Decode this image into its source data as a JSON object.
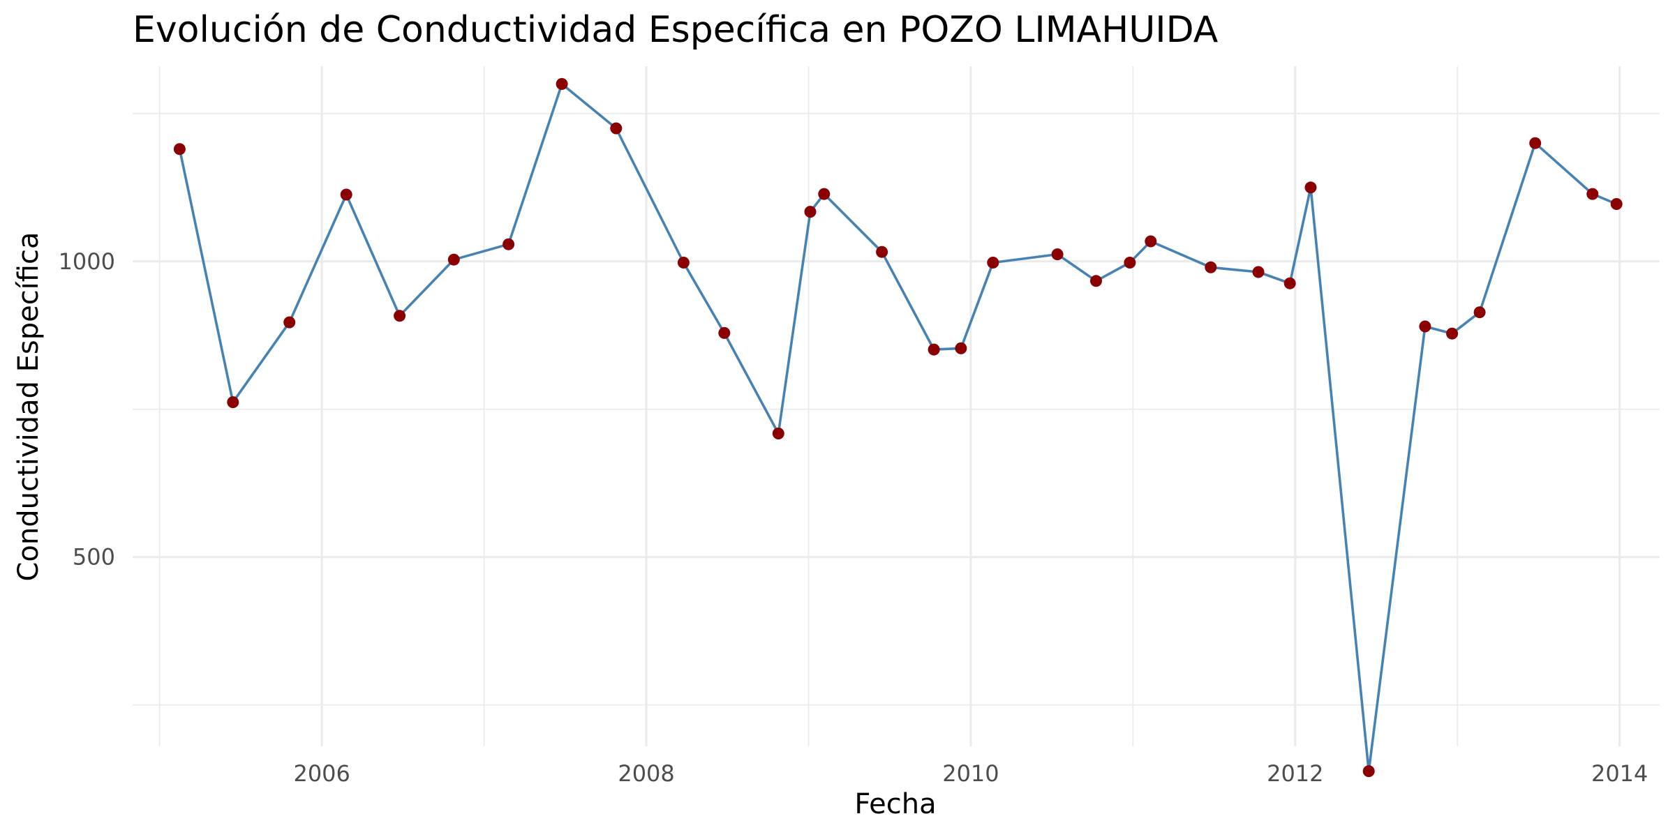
{
  "chart_data": {
    "type": "line",
    "title": "Evolución de Conductividad Específica en POZO LIMAHUIDA",
    "xlabel": "Fecha",
    "ylabel": "Conductividad Específica",
    "x_ticks": [
      "2006",
      "2008",
      "2010",
      "2012",
      "2014"
    ],
    "y_ticks": [
      "500",
      "1000"
    ],
    "xlim": [
      "2004-11-01",
      "2014-04-01"
    ],
    "ylim": [
      180,
      1330
    ],
    "grid": true,
    "line_color": "#4682b4",
    "point_color": "#8b0000",
    "series": [
      {
        "points": [
          [
            "2005-02-15",
            1190
          ],
          [
            "2005-06-15",
            762
          ],
          [
            "2005-10-20",
            897
          ],
          [
            "2006-02-25",
            1113
          ],
          [
            "2006-06-25",
            908
          ],
          [
            "2006-10-25",
            1003
          ],
          [
            "2007-02-25",
            1029
          ],
          [
            "2007-06-25",
            1300
          ],
          [
            "2007-10-25",
            1225
          ],
          [
            "2008-03-25",
            998
          ],
          [
            "2008-06-25",
            879
          ],
          [
            "2008-10-25",
            709
          ],
          [
            "2009-01-05",
            1084
          ],
          [
            "2009-02-05",
            1114
          ],
          [
            "2009-06-15",
            1016
          ],
          [
            "2009-10-10",
            851
          ],
          [
            "2009-12-10",
            853
          ],
          [
            "2010-02-20",
            998
          ],
          [
            "2010-07-15",
            1012
          ],
          [
            "2010-10-10",
            967
          ],
          [
            "2010-12-25",
            998
          ],
          [
            "2011-02-10",
            1034
          ],
          [
            "2011-06-25",
            990
          ],
          [
            "2011-10-10",
            982
          ],
          [
            "2011-12-20",
            963
          ],
          [
            "2012-02-05",
            1125
          ],
          [
            "2012-06-15",
            138
          ],
          [
            "2012-10-20",
            890
          ],
          [
            "2012-12-20",
            878
          ],
          [
            "2013-02-20",
            914
          ],
          [
            "2013-06-25",
            1200
          ],
          [
            "2013-11-01",
            1114
          ],
          [
            "2013-12-25",
            1097
          ]
        ]
      }
    ]
  }
}
